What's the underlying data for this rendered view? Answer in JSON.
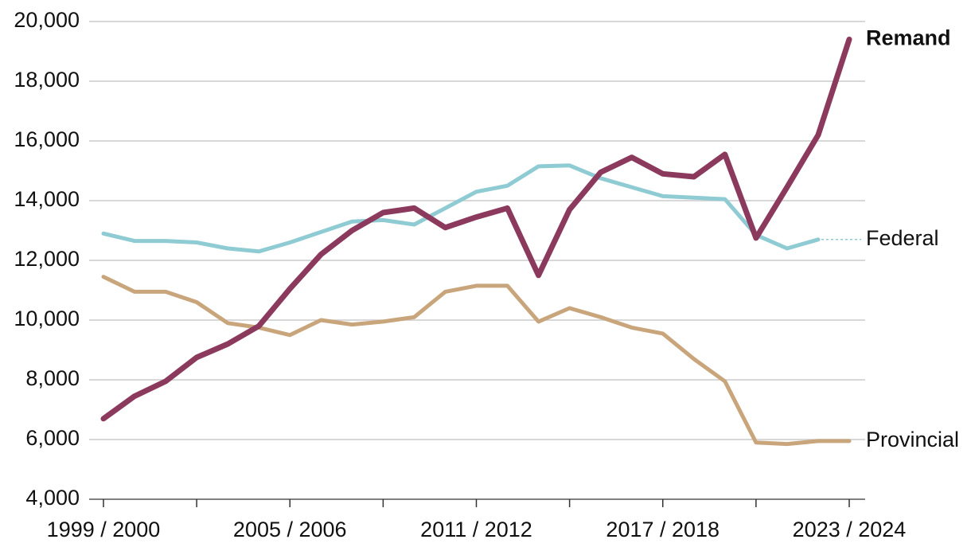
{
  "chart_data": {
    "type": "line",
    "categories": [
      "1999 / 2000",
      null,
      null,
      null,
      null,
      null,
      "2005 / 2006",
      null,
      null,
      null,
      null,
      null,
      "2011 / 2012",
      null,
      null,
      null,
      null,
      null,
      "2017 / 2018",
      null,
      null,
      null,
      null,
      null,
      "2023 / 2024"
    ],
    "series": [
      {
        "name": "Federal",
        "color": "#8ecbd3",
        "values": [
          12900,
          12650,
          12650,
          12600,
          12400,
          12300,
          12600,
          12950,
          13300,
          13350,
          13200,
          13750,
          14300,
          14500,
          15150,
          15180,
          14750,
          14450,
          14150,
          14100,
          14050,
          12850,
          12400,
          12700,
          null
        ]
      },
      {
        "name": "Provincial",
        "color": "#c9a57c",
        "values": [
          11450,
          10950,
          10950,
          10600,
          9900,
          9750,
          9500,
          10000,
          9850,
          9950,
          10100,
          10950,
          11150,
          11150,
          9950,
          10400,
          10100,
          9750,
          9550,
          8700,
          7950,
          5900,
          5850,
          5950,
          5950
        ]
      },
      {
        "name": "Remand",
        "color": "#8b3a5e",
        "values": [
          6700,
          7450,
          7950,
          8750,
          9200,
          9800,
          11050,
          12200,
          13000,
          13600,
          13750,
          13100,
          13450,
          13750,
          11500,
          13700,
          14950,
          15450,
          14900,
          14800,
          15550,
          12750,
          14450,
          16200,
          19400
        ]
      }
    ],
    "ylim": [
      4000,
      20000
    ],
    "yticks": [
      {
        "value": 4000,
        "label": "4,000"
      },
      {
        "value": 6000,
        "label": "6,000"
      },
      {
        "value": 8000,
        "label": "8,000"
      },
      {
        "value": 10000,
        "label": "10,000"
      },
      {
        "value": 12000,
        "label": "12,000"
      },
      {
        "value": 14000,
        "label": "14,000"
      },
      {
        "value": 16000,
        "label": "16,000"
      },
      {
        "value": 18000,
        "label": "18,000"
      },
      {
        "value": 20000,
        "label": "20,000"
      }
    ],
    "grid": true
  }
}
